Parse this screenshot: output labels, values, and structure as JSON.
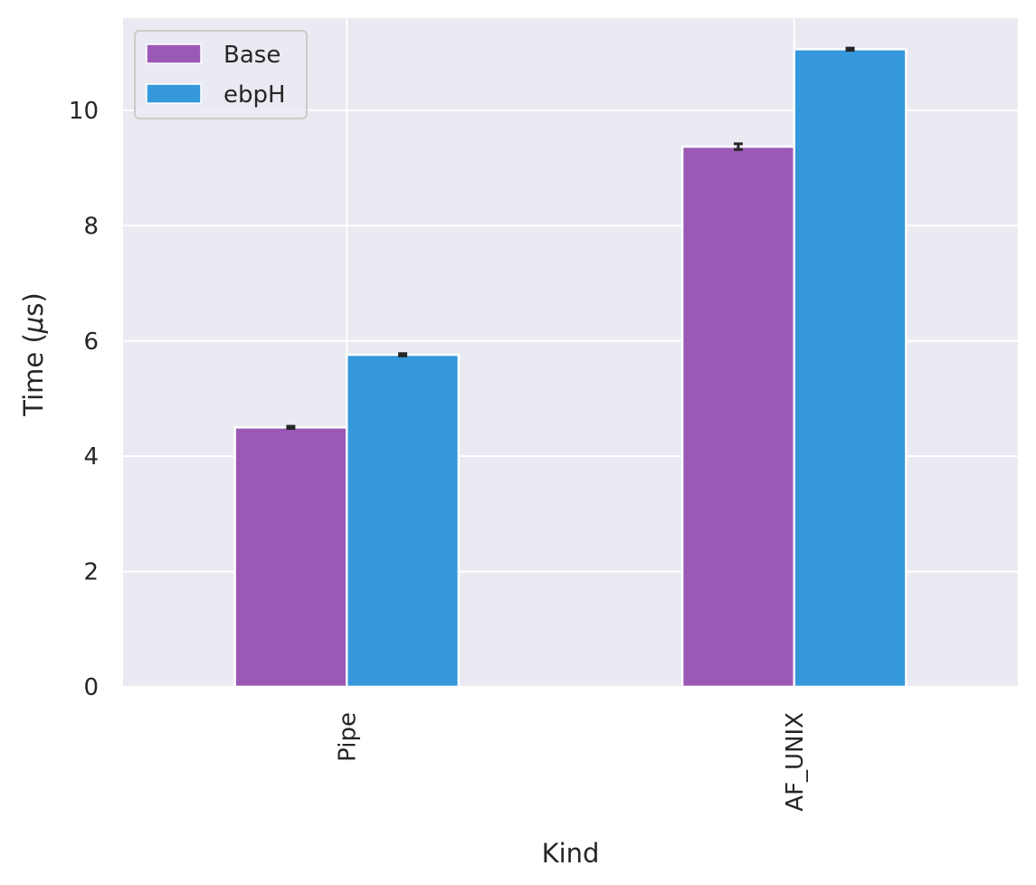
{
  "chart_data": {
    "type": "bar",
    "categories": [
      "Pipe",
      "AF_UNIX"
    ],
    "series": [
      {
        "name": "Base",
        "color": "#9b59b6",
        "values": [
          4.5,
          9.37
        ],
        "errors": [
          0.02,
          0.05
        ]
      },
      {
        "name": "ebpH",
        "color": "#3498db",
        "values": [
          5.76,
          11.06
        ],
        "errors": [
          0.02,
          0.02
        ]
      }
    ],
    "title": "",
    "xlabel": "Kind",
    "ylabel_prefix": "Time (",
    "ylabel_unit": "μ",
    "ylabel_suffix": "s)",
    "ylim": [
      0,
      11.6
    ],
    "yticks": [
      0,
      2,
      4,
      6,
      8,
      10
    ],
    "ytick_labels": [
      "0",
      "2",
      "4",
      "6",
      "8",
      "10"
    ],
    "grid": true,
    "legend_position": "upper-left",
    "background_color": "#eaeaf2",
    "grid_color": "#ffffff",
    "xtick_rotation": "vertical"
  }
}
